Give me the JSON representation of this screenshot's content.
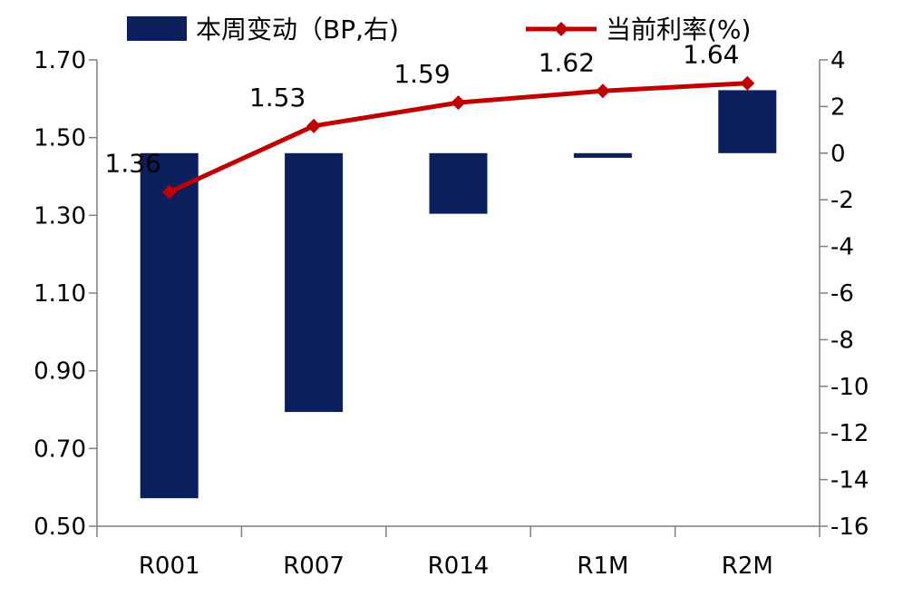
{
  "chart_data": {
    "type": "bar+line",
    "categories": [
      "R001",
      "R007",
      "R014",
      "R1M",
      "R2M"
    ],
    "series": [
      {
        "name": "本周变动（BP,右)",
        "type": "bar",
        "axis": "right",
        "values": [
          -14.8,
          -11.1,
          -2.6,
          -0.2,
          2.7
        ]
      },
      {
        "name": "当前利率(%)",
        "type": "line",
        "axis": "left",
        "values": [
          1.36,
          1.53,
          1.59,
          1.62,
          1.64
        ],
        "labels": [
          "1.36",
          "1.53",
          "1.59",
          "1.62",
          "1.64"
        ]
      }
    ],
    "y_left": {
      "min": 0.5,
      "max": 1.7,
      "ticks": [
        "0.50",
        "0.70",
        "0.90",
        "1.10",
        "1.30",
        "1.50",
        "1.70"
      ]
    },
    "y_right": {
      "min": -16,
      "max": 4,
      "ticks": [
        "-16",
        "-14",
        "-12",
        "-10",
        "-8",
        "-6",
        "-4",
        "-2",
        "0",
        "2",
        "4"
      ]
    },
    "colors": {
      "bar": "#0B1F5C",
      "line": "#C00000",
      "axis": "#7F7F7F"
    },
    "legend_position": "top",
    "grid": false
  }
}
